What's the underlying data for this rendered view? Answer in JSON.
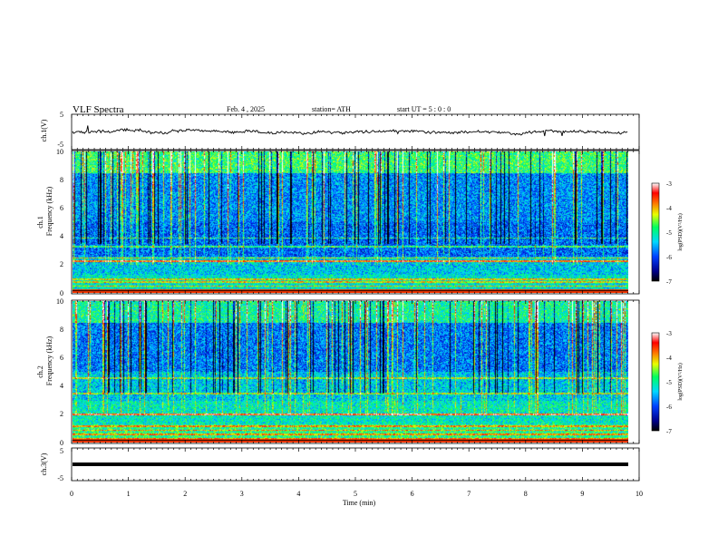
{
  "header": {
    "title": "VLF  Spectra",
    "date": "Feb. 4 , 2025",
    "station": "station= ATH",
    "start_ut": "start  UT  =    5  : 0  : 0"
  },
  "chart_data": [
    {
      "type": "line",
      "panel": "ch1-waveform",
      "ylabel": "ch.1(V)",
      "ylim": [
        -5,
        5
      ],
      "yticks": [
        -5,
        5
      ],
      "xlim": [
        0,
        10
      ],
      "baseline_volts": 0,
      "color": "#000000"
    },
    {
      "type": "heatmap",
      "panel": "ch1-spectrogram",
      "ylabel_top": "ch.1",
      "ylabel": "Frequency  (kHz)",
      "ylim": [
        0,
        10
      ],
      "yticks": [
        0,
        2,
        4,
        6,
        8,
        10
      ],
      "xlim": [
        0,
        9.8
      ],
      "horizontal_lines_khz": [
        0.2,
        0.5,
        0.8,
        1.0,
        2.3,
        2.5,
        3.3,
        3.9
      ],
      "bright_line_khz": 2.3,
      "colorbar": {
        "label": "log(PSD)(V²/Hz)",
        "range": [
          -7,
          -3
        ],
        "ticks": [
          -7,
          -6,
          -5,
          -4,
          -3
        ]
      }
    },
    {
      "type": "heatmap",
      "panel": "ch2-spectrogram",
      "ylabel_top": "ch.2",
      "ylabel": "Frequency  (kHz)",
      "ylim": [
        0,
        10
      ],
      "yticks": [
        0,
        2,
        4,
        6,
        8,
        10
      ],
      "xlim": [
        0,
        9.8
      ],
      "horizontal_lines_khz": [
        0.3,
        0.6,
        0.9,
        1.2,
        2.0,
        3.5,
        4.6
      ],
      "bright_line_khz": 2.0,
      "colorbar": {
        "label": "log(PSD)(V²/Hz)",
        "range": [
          -7,
          -3
        ],
        "ticks": [
          -7,
          -6,
          -5,
          -4,
          -3
        ]
      }
    },
    {
      "type": "line",
      "panel": "ch3-waveform",
      "ylabel": "ch.3(V)",
      "ylim": [
        -5,
        5
      ],
      "yticks": [
        -5,
        5
      ],
      "xlim": [
        0,
        10
      ],
      "baseline_volts": 0,
      "color": "#000000"
    }
  ],
  "xaxis": {
    "label": "Time  (min)",
    "xlim": [
      0,
      10
    ],
    "ticks": [
      "0",
      "1",
      "2",
      "3",
      "4",
      "5",
      "6",
      "7",
      "8",
      "9",
      "10"
    ]
  }
}
